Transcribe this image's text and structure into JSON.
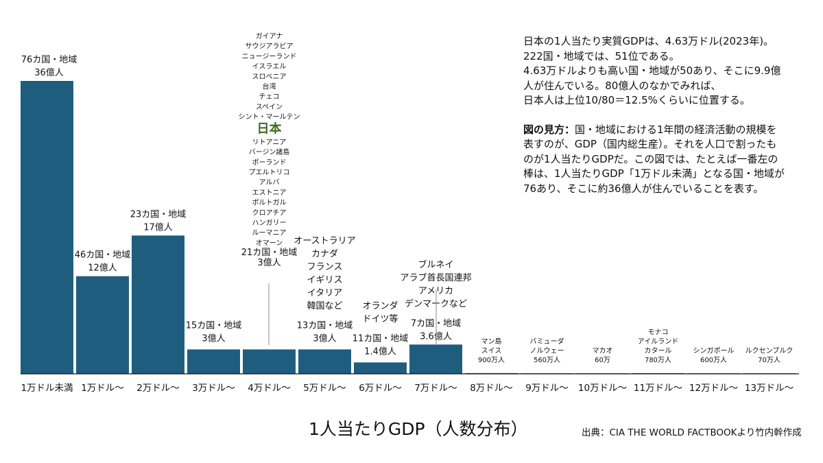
{
  "chart_data": {
    "type": "bar",
    "title": "1人当たりGDP（人数分布）",
    "source": "出典：CIA THE WORLD FACTBOOKより竹内幹作成",
    "xlabel": "",
    "ylabel": "",
    "bar_color": "#1f5d7e",
    "highlight_color": "#3b6a1f",
    "categories": [
      "1万ドル未満",
      "1万ドル〜",
      "2万ドル〜",
      "3万ドル〜",
      "4万ドル〜",
      "5万ドル〜",
      "6万ドル〜",
      "7万ドル〜",
      "8万ドル〜",
      "9万ドル〜",
      "10万ドル〜",
      "11万ドル〜",
      "12万ドル〜",
      "13万ドル〜"
    ],
    "values_oku": [
      36,
      12,
      17,
      3,
      3,
      3,
      1.4,
      3.6,
      0.09,
      0.056,
      0.006,
      0.078,
      0.06,
      0.007
    ],
    "bar_labels": [
      {
        "lines": [
          "76カ国・地域",
          "36億人"
        ]
      },
      {
        "lines": [
          "46カ国・地域",
          "12億人"
        ]
      },
      {
        "lines": [
          "23カ国・地域",
          "17億人"
        ]
      },
      {
        "lines": [
          "15カ国・地域",
          "3億人"
        ]
      },
      {
        "lines": [
          "ガイアナ",
          "サウジアラビア",
          "ニュージーランド",
          "イスラエル",
          "スロベニア",
          "台湾",
          "チェコ",
          "スペイン",
          "シント・マールテン",
          "日本",
          "リトアニア",
          "バージン諸島",
          "ポーランド",
          "プエルトリコ",
          "アルバ",
          "エストニア",
          "ポルトガル",
          "クロアチア",
          "ハンガリー",
          "ルーマニア",
          "オマーン",
          "21カ国・地域",
          "3億人"
        ],
        "highlight": "日本"
      },
      {
        "lines": [
          "オーストラリア",
          "カナダ",
          "フランス",
          "イギリス",
          "イタリア",
          "韓国など",
          "",
          "13カ国・地域",
          "3億人"
        ]
      },
      {
        "lines": [
          "オランダ",
          "ドイツ等",
          "",
          "11カ国・地域",
          "1.4億人"
        ]
      },
      {
        "lines": [
          "ブルネイ",
          "アラブ首長国連邦",
          "アメリカ",
          "デンマークなど",
          "",
          "7カ国・地域",
          "3.6億人"
        ]
      },
      {
        "lines": [
          "マン島",
          "スイス",
          "900万人"
        ]
      },
      {
        "lines": [
          "バミューダ",
          "ノルウェー",
          "560万人"
        ]
      },
      {
        "lines": [
          "マカオ",
          "60万"
        ]
      },
      {
        "lines": [
          "モナコ",
          "アイルランド",
          "カタール",
          "780万人"
        ]
      },
      {
        "lines": [
          "シンガポール",
          "600万人"
        ]
      },
      {
        "lines": [
          "ルクセンブルク",
          "70万人"
        ]
      }
    ],
    "ylim": [
      0,
      36
    ],
    "grid": false,
    "legend": "none"
  },
  "note": {
    "para1": [
      "日本の1人当たり実質GDPは、4.63万ドル(2023年)。",
      "222国・地域では、51位である。",
      "4.63万ドルよりも高い国・地域が50あり、そこに9.9億",
      "人が住んでいる。80億人のなかでみれば、",
      "日本人は上位10/80＝12.5%くらいに位置する。"
    ],
    "para2_heading": "図の見方：",
    "para2": [
      "国・地域における1年間の経済活動の規模を",
      "表すのが、GDP（国内総生産）。それを人口で割ったも",
      "のが1人当たりGDPだ。この図では、たとえば一番左の",
      "棒は、1人当たりGDP「1万ドル未満」となる国・地域が",
      "76あり、そこに約36億人が住んでいることを表す。"
    ]
  }
}
